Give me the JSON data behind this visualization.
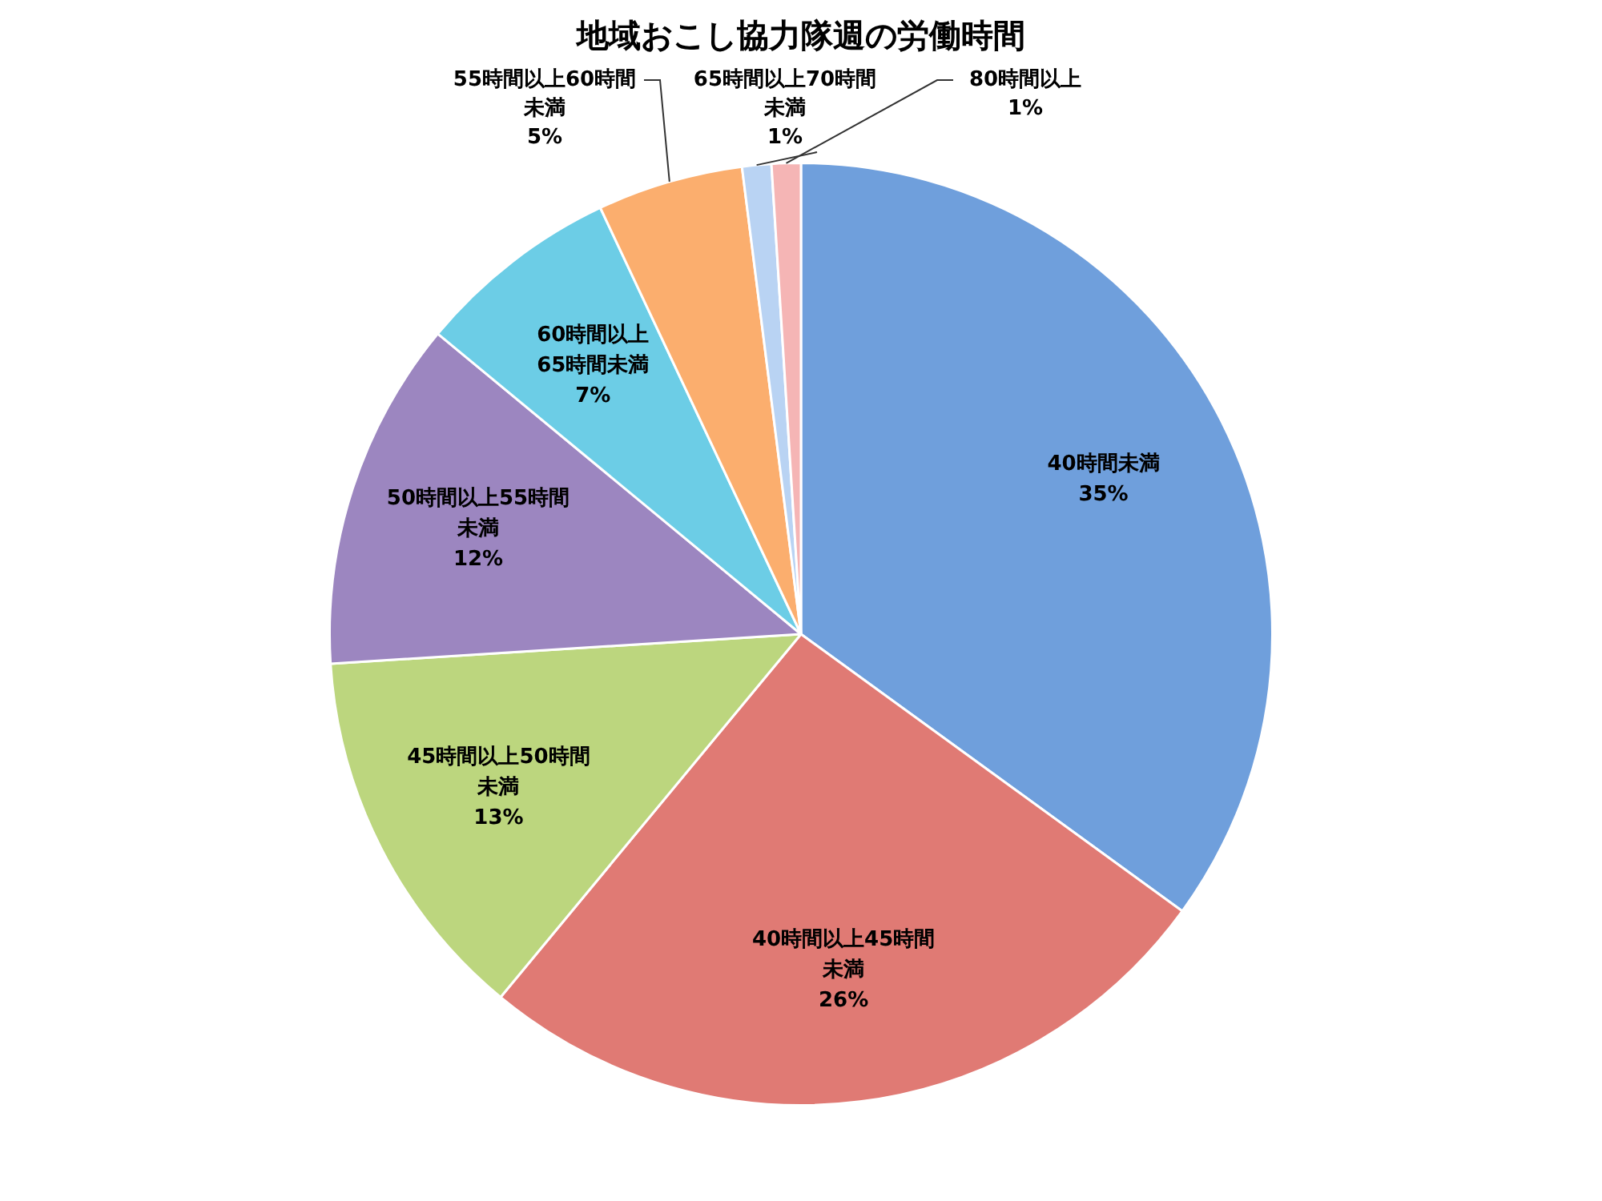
{
  "chart_data": {
    "type": "pie",
    "title": "地域おこし協力隊週の労働時間",
    "categories": [
      "40時間未満",
      "40時間以上45時間未満",
      "45時間以上50時間未満",
      "50時間以上55時間未満",
      "60時間以上65時間未満",
      "55時間以上60時間未満",
      "65時間以上70時間未満",
      "80時間以上"
    ],
    "values": [
      35,
      26,
      13,
      12,
      7,
      5,
      1,
      1
    ],
    "value_labels": [
      "35%",
      "26%",
      "13%",
      "12%",
      "7%",
      "5%",
      "1%",
      "1%"
    ],
    "colors": [
      "#6f9fdc",
      "#e07a74",
      "#bcd67e",
      "#9c86c0",
      "#6ccde6",
      "#fbae6e",
      "#b9d3f3",
      "#f5b5b5"
    ],
    "legend": false
  }
}
